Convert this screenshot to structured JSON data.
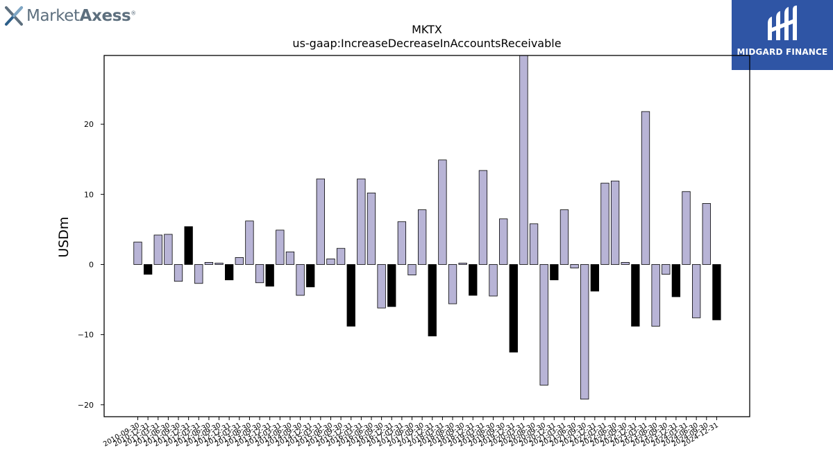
{
  "logos": {
    "left_text_light": "Market",
    "left_text_bold": "Axess",
    "left_mark": "®",
    "right_text": "MIDGARD FINANCE"
  },
  "chart_data": {
    "type": "bar",
    "title": "MKTX",
    "subtitle": "us-gaap:IncreaseDecreaseInAccountsReceivable",
    "ylabel": "USDm",
    "xlabel": "",
    "ylim": [
      -21.7,
      29.8
    ],
    "yticks": [
      -20,
      -10,
      0,
      10,
      20
    ],
    "ytick_labels": [
      "−20",
      "−10",
      "0",
      "10",
      "20"
    ],
    "grid": false,
    "colors": {
      "default": "#b8b4d6",
      "q4": "#000000",
      "edge": "#000000"
    },
    "categories": [
      "2010-09-30",
      "2010-12-31",
      "2011-03-31",
      "2011-06-30",
      "2011-09-30",
      "2011-12-31",
      "2012-03-31",
      "2012-06-30",
      "2012-09-30",
      "2012-12-31",
      "2013-03-31",
      "2013-06-30",
      "2013-09-30",
      "2013-12-31",
      "2014-03-31",
      "2014-06-30",
      "2014-09-30",
      "2014-12-31",
      "2015-03-31",
      "2015-06-30",
      "2015-09-30",
      "2015-12-31",
      "2016-03-31",
      "2016-06-30",
      "2016-09-30",
      "2016-12-31",
      "2017-03-31",
      "2017-06-30",
      "2017-09-30",
      "2017-12-31",
      "2018-03-31",
      "2018-06-30",
      "2018-09-30",
      "2018-12-31",
      "2019-03-31",
      "2019-06-30",
      "2019-09-30",
      "2019-12-31",
      "2020-03-31",
      "2020-06-30",
      "2020-09-30",
      "2020-12-31",
      "2021-03-31",
      "2021-06-30",
      "2021-09-30",
      "2021-12-31",
      "2022-03-31",
      "2022-06-30",
      "2022-09-30",
      "2022-12-31",
      "2023-03-31",
      "2023-06-30",
      "2023-09-30",
      "2023-12-31",
      "2024-03-31",
      "2024-06-30",
      "2024-09-30",
      "2024-12-31"
    ],
    "values": [
      3.2,
      -1.4,
      4.2,
      4.3,
      -2.4,
      5.4,
      -2.7,
      0.3,
      0.2,
      -2.2,
      1.0,
      6.2,
      -2.6,
      -3.1,
      4.9,
      1.8,
      -4.4,
      -3.2,
      12.2,
      0.8,
      2.3,
      -8.8,
      12.2,
      10.2,
      -6.2,
      -6.0,
      6.1,
      -1.5,
      7.8,
      -10.2,
      14.9,
      -5.6,
      0.2,
      -4.4,
      13.4,
      -4.5,
      6.5,
      -12.5,
      29.8,
      5.8,
      -17.2,
      -2.2,
      7.8,
      -0.5,
      -19.2,
      -3.8,
      11.6,
      11.9,
      0.3,
      -8.8,
      21.8,
      -8.8,
      -1.4,
      -4.6,
      10.4,
      -7.6,
      8.7,
      -7.9
    ]
  }
}
